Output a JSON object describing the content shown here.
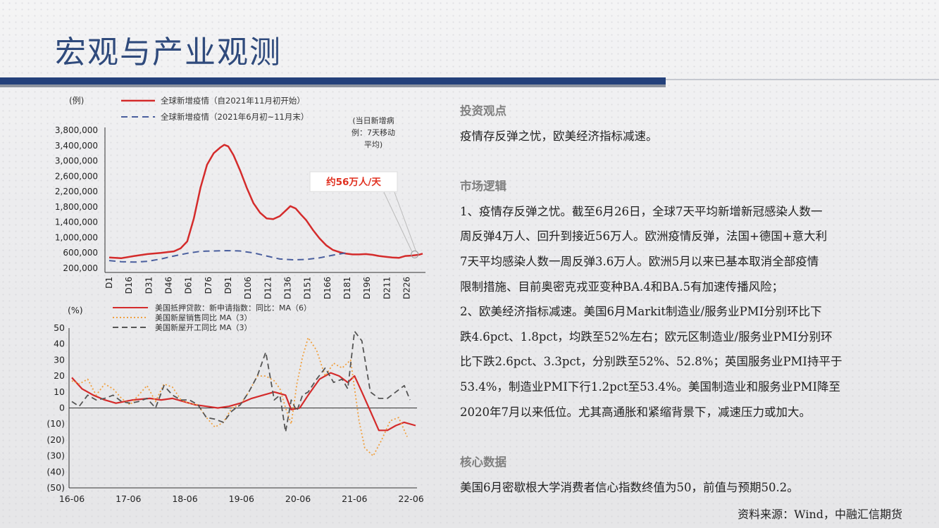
{
  "page": {
    "title": "宏观与产业观测",
    "source": "资料来源：Wind，中融汇信期货"
  },
  "right": {
    "s1_title": "投资观点",
    "s1_text": "疫情存反弹之忧，欧美经济指标减速。",
    "s2_title": "市场逻辑",
    "s2_lines": [
      "1、疫情存反弹之忧。截至6月26日，全球7天平均新增新冠感染人数一",
      "周反弹4万人、回升到接近56万人。欧洲疫情反弹，法国+德国+意大利",
      "7天平均感染人数一周反弹3.6万人。欧洲5月以来已基本取消全部疫情",
      "限制措施、目前奥密克戎亚变种BA.4和BA.5有加速传播风险；",
      "2、欧美经济指标减速。美国6月Markit制造业/服务业PMI分别环比下",
      "跌4.6pct、1.8pct，均跌至52%左右；欧元区制造业/服务业PMI分别环",
      "比下跌2.6pct、3.3pct，分别跌至52%、52.8%；英国服务业PMI持平于",
      "53.4%，制造业PMI下行1.2pct至53.4%。美国制造业和服务业PMI降至",
      "2020年7月以来低位。尤其高通胀和紧缩背景下，减速压力或加大。"
    ],
    "s3_title": "核心数据",
    "s3_text": "美国6月密歇根大学消费者信心指数终值为50，前值与预期50.2。"
  },
  "chart_data": [
    {
      "type": "line",
      "unit_label": "(例)",
      "legend_side_note": "(当日新增病例：7天移动平均)",
      "legend_note_lines": [
        "(当日新增病",
        "例：7天移动",
        "平均)"
      ],
      "annotation": "约56万人/天",
      "ylim": [
        200000,
        3800000
      ],
      "y_ticks": [
        "3,800,000",
        "3,400,000",
        "3,000,000",
        "2,600,000",
        "2,200,000",
        "1,800,000",
        "1,400,000",
        "1,000,000",
        "600,000",
        "200,000"
      ],
      "x_ticks": [
        "D1",
        "D16",
        "D31",
        "D46",
        "D61",
        "D76",
        "D91",
        "D106",
        "D121",
        "D136",
        "D151",
        "D166",
        "D181",
        "D196",
        "D211",
        "D226"
      ],
      "xlim": [
        1,
        238
      ],
      "colors": {
        "red": "#d42b2b",
        "blue": "#4a5f9e",
        "annot": "#e03020"
      },
      "series": [
        {
          "name": "全球新增疫情（自2021年11月初开始）",
          "style": "solid",
          "x": [
            1,
            10,
            20,
            30,
            40,
            50,
            55,
            60,
            65,
            70,
            75,
            80,
            85,
            88,
            91,
            95,
            100,
            105,
            110,
            115,
            120,
            125,
            130,
            135,
            138,
            142,
            146,
            150,
            155,
            160,
            165,
            170,
            175,
            180,
            185,
            190,
            195,
            200,
            205,
            210,
            215,
            220,
            225,
            230,
            235,
            238
          ],
          "values": [
            480000,
            460000,
            520000,
            570000,
            600000,
            640000,
            720000,
            900000,
            1500000,
            2300000,
            2900000,
            3200000,
            3350000,
            3420000,
            3380000,
            3150000,
            2750000,
            2300000,
            1900000,
            1650000,
            1500000,
            1480000,
            1560000,
            1720000,
            1820000,
            1760000,
            1600000,
            1450000,
            1200000,
            980000,
            800000,
            680000,
            620000,
            580000,
            560000,
            560000,
            570000,
            550000,
            520000,
            500000,
            480000,
            470000,
            520000,
            530000,
            550000,
            580000
          ]
        },
        {
          "name": "全球新增疫情（2021年6月初~11月末）",
          "style": "dashed",
          "x": [
            1,
            10,
            20,
            30,
            40,
            50,
            60,
            70,
            80,
            90,
            100,
            110,
            120,
            130,
            140,
            150,
            160,
            170,
            180
          ],
          "values": [
            400000,
            370000,
            360000,
            380000,
            440000,
            520000,
            590000,
            640000,
            650000,
            660000,
            650000,
            600000,
            520000,
            440000,
            420000,
            430000,
            470000,
            540000,
            600000
          ]
        }
      ]
    },
    {
      "type": "line",
      "unit_label": "(%)",
      "ylim": [
        -50,
        50
      ],
      "y_ticks": [
        "50",
        "40",
        "30",
        "20",
        "10",
        "0",
        "(10)",
        "(20)",
        "(30)",
        "(40)",
        "(50)"
      ],
      "y_tick_values": [
        50,
        40,
        30,
        20,
        10,
        0,
        -10,
        -20,
        -30,
        -40,
        -50
      ],
      "x_ticks": [
        "16-06",
        "17-06",
        "18-06",
        "19-06",
        "20-06",
        "21-06",
        "22-06"
      ],
      "x_tick_values": [
        2016.42,
        2017.42,
        2018.42,
        2019.42,
        2020.42,
        2021.42,
        2022.42
      ],
      "xlim": [
        2016.42,
        2022.5
      ],
      "colors": {
        "red": "#d42b2b",
        "orange": "#f0a040",
        "gray": "#555555"
      },
      "series": [
        {
          "name": "美国抵押贷款：新申请指数：同比：MA（6）",
          "style": "solid",
          "x": [
            2016.42,
            2016.6,
            2016.8,
            2017.0,
            2017.2,
            2017.5,
            2017.8,
            2018.0,
            2018.2,
            2018.4,
            2018.6,
            2018.8,
            2019.0,
            2019.2,
            2019.4,
            2019.6,
            2019.8,
            2020.0,
            2020.2,
            2020.3,
            2020.45,
            2020.6,
            2020.8,
            2021.0,
            2021.15,
            2021.3,
            2021.42,
            2021.55,
            2021.7,
            2021.85,
            2022.0,
            2022.15,
            2022.3,
            2022.5
          ],
          "values": [
            19,
            12,
            8,
            5,
            3,
            5,
            6,
            5,
            6,
            4,
            2,
            1,
            0,
            1,
            3,
            6,
            8,
            10,
            8,
            -1,
            0,
            8,
            18,
            22,
            20,
            16,
            20,
            10,
            -2,
            -14,
            -14,
            -11,
            -9,
            -11
          ]
        },
        {
          "name": "美国新屋销售同比 MA（3）",
          "style": "dotted",
          "x": [
            2016.42,
            2016.55,
            2016.7,
            2016.85,
            2017.0,
            2017.15,
            2017.3,
            2017.45,
            2017.6,
            2017.75,
            2017.9,
            2018.05,
            2018.2,
            2018.35,
            2018.5,
            2018.65,
            2018.8,
            2018.95,
            2019.1,
            2019.25,
            2019.4,
            2019.55,
            2019.7,
            2019.85,
            2020.0,
            2020.1,
            2020.2,
            2020.3,
            2020.4,
            2020.5,
            2020.6,
            2020.75,
            2020.9,
            2021.05,
            2021.2,
            2021.35,
            2021.5,
            2021.6,
            2021.75,
            2021.9,
            2022.05,
            2022.2,
            2022.35
          ],
          "values": [
            17,
            15,
            18,
            8,
            15,
            12,
            6,
            2,
            8,
            14,
            4,
            15,
            13,
            5,
            3,
            2,
            -6,
            -12,
            -9,
            0,
            2,
            10,
            20,
            20,
            17,
            12,
            0,
            -10,
            15,
            32,
            44,
            36,
            20,
            28,
            25,
            30,
            -8,
            -25,
            -30,
            -20,
            -8,
            -6,
            -18
          ]
        },
        {
          "name": "美国新屋开工同比 MA（3）",
          "style": "dashed",
          "x": [
            2016.42,
            2016.55,
            2016.7,
            2016.85,
            2017.0,
            2017.15,
            2017.3,
            2017.45,
            2017.6,
            2017.75,
            2017.9,
            2018.05,
            2018.2,
            2018.35,
            2018.5,
            2018.65,
            2018.8,
            2018.95,
            2019.1,
            2019.25,
            2019.4,
            2019.55,
            2019.7,
            2019.85,
            2020.0,
            2020.1,
            2020.2,
            2020.3,
            2020.4,
            2020.5,
            2020.6,
            2020.75,
            2020.9,
            2021.05,
            2021.2,
            2021.3,
            2021.42,
            2021.55,
            2021.7,
            2021.85,
            2022.0,
            2022.15,
            2022.3,
            2022.4
          ],
          "values": [
            4,
            1,
            8,
            5,
            6,
            8,
            4,
            3,
            4,
            6,
            0,
            14,
            8,
            5,
            5,
            2,
            -6,
            -7,
            -9,
            -2,
            2,
            10,
            20,
            35,
            5,
            8,
            -15,
            5,
            -2,
            8,
            10,
            18,
            25,
            16,
            18,
            12,
            48,
            42,
            10,
            6,
            6,
            10,
            14,
            5
          ]
        }
      ]
    }
  ]
}
